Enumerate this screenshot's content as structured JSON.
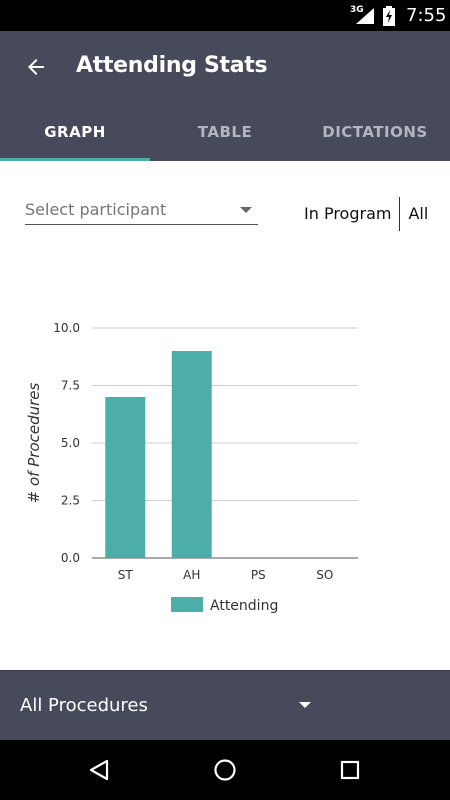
{
  "status_bar": {
    "network": "3G",
    "time": "7:55"
  },
  "app_bar": {
    "title": "Attending Stats"
  },
  "tabs": [
    {
      "label": "GRAPH",
      "active": true
    },
    {
      "label": "TABLE",
      "active": false
    },
    {
      "label": "DICTATIONS",
      "active": false
    }
  ],
  "filter": {
    "participant_placeholder": "Select participant",
    "toggle_in_program": "In Program",
    "toggle_all": "All"
  },
  "chart_data": {
    "type": "bar",
    "categories": [
      "ST",
      "AH",
      "PS",
      "SO"
    ],
    "series": [
      {
        "name": "Attending",
        "values": [
          7,
          9,
          0,
          0
        ]
      }
    ],
    "ylabel": "# of Procedures",
    "xlabel": "",
    "ylim": [
      0,
      10
    ],
    "yticks": [
      "0.0",
      "2.5",
      "5.0",
      "7.5",
      "10.0"
    ],
    "grid": true,
    "legend": "bottom",
    "bar_color": "#4daea7"
  },
  "bottom_bar": {
    "label": "All Procedures"
  },
  "colors": {
    "primary": "#474a5b",
    "accent": "#4db0a8"
  }
}
